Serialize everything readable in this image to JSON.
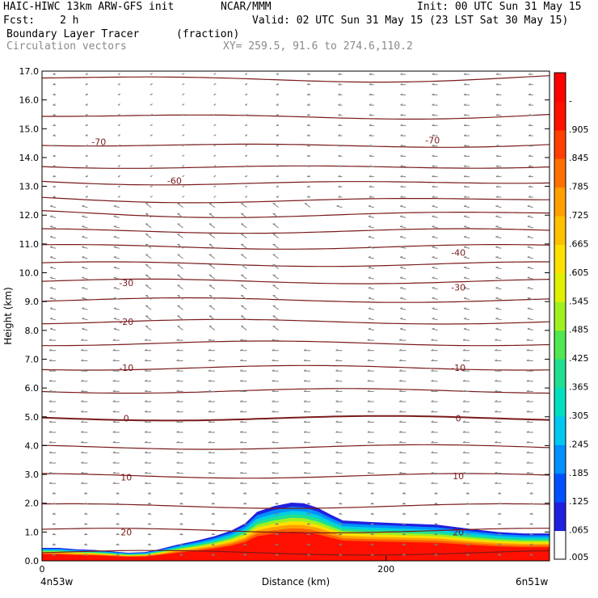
{
  "header": {
    "model": "HAIC-HIWC 13km ARW-GFS init",
    "org": "NCAR/MMM",
    "init": "Init: 00 UTC Sun 31 May 15",
    "fcst_label": "Fcst:",
    "fcst_value": "2 h",
    "valid": "Valid: 02 UTC Sun 31 May 15 (23 LST Sat 30 May 15)",
    "field": "Boundary Layer Tracer",
    "field_units": "(fraction)",
    "vectors": "Circulation vectors",
    "xy": "XY= 259.5, 91.6 to 274.6,110.2"
  },
  "colors": {
    "contour": "#7a1a1a",
    "vector": "#808080",
    "frame": "#000000"
  },
  "chart_data": {
    "type": "heatmap",
    "title": "Boundary Layer Tracer",
    "xlabel": "Distance (km)",
    "ylabel": "Height (km)",
    "xlim": [
      0,
      295
    ],
    "ylim": [
      0,
      17
    ],
    "x_ticks": [
      0,
      200
    ],
    "x_tick_labels": [
      "0",
      "200"
    ],
    "x_end_labels": [
      "4n53w",
      "6n51w"
    ],
    "y_ticks": [
      0,
      1,
      2,
      3,
      4,
      5,
      6,
      7,
      8,
      9,
      10,
      11,
      12,
      13,
      14,
      15,
      16,
      17
    ],
    "y_tick_labels": [
      "0.0",
      "1.0",
      "2.0",
      "3.0",
      "4.0",
      "5.0",
      "6.0",
      "7.0",
      "8.0",
      "9.0",
      "10.0",
      "11.0",
      "12.0",
      "13.0",
      "14.0",
      "15.0",
      "16.0",
      "17.0"
    ],
    "colorbar_labels": [
      ".005",
      ".065",
      ".125",
      ".185",
      ".245",
      ".305",
      ".365",
      ".425",
      ".485",
      ".545",
      ".605",
      ".665",
      ".725",
      ".785",
      ".845",
      ".905",
      "-"
    ],
    "colorbar_colors": [
      "#ffffff",
      "#2020e0",
      "#0050ff",
      "#0090ff",
      "#00c8f0",
      "#00e0c0",
      "#20e090",
      "#50e850",
      "#a0f020",
      "#e0f000",
      "#ffe000",
      "#ffc000",
      "#ffa000",
      "#ff7000",
      "#ff4000",
      "#ff1000",
      "#ff0000"
    ],
    "tracer_top_km": [
      [
        0,
        0.45
      ],
      [
        10,
        0.45
      ],
      [
        20,
        0.4
      ],
      [
        30,
        0.38
      ],
      [
        40,
        0.33
      ],
      [
        50,
        0.28
      ],
      [
        60,
        0.3
      ],
      [
        68,
        0.4
      ],
      [
        78,
        0.55
      ],
      [
        90,
        0.7
      ],
      [
        100,
        0.85
      ],
      [
        110,
        1.05
      ],
      [
        118,
        1.3
      ],
      [
        125,
        1.7
      ],
      [
        135,
        1.9
      ],
      [
        145,
        2.02
      ],
      [
        152,
        2.0
      ],
      [
        160,
        1.85
      ],
      [
        168,
        1.6
      ],
      [
        175,
        1.4
      ],
      [
        190,
        1.35
      ],
      [
        210,
        1.3
      ],
      [
        230,
        1.25
      ],
      [
        250,
        1.1
      ],
      [
        265,
        1.0
      ],
      [
        280,
        0.95
      ],
      [
        295,
        0.95
      ]
    ],
    "isotherm_labels": [
      {
        "text": "-70",
        "x": 33,
        "y": 14.55
      },
      {
        "text": "-70",
        "x": 227,
        "y": 14.6
      },
      {
        "text": "-60",
        "x": 77,
        "y": 13.2
      },
      {
        "text": "-40",
        "x": 242,
        "y": 10.7
      },
      {
        "text": "-30",
        "x": 49,
        "y": 9.65
      },
      {
        "text": "-30",
        "x": 242,
        "y": 9.5
      },
      {
        "text": "-20",
        "x": 49,
        "y": 8.3
      },
      {
        "text": "-10",
        "x": 49,
        "y": 6.7
      },
      {
        "text": "-10",
        "x": 242,
        "y": 6.7
      },
      {
        "text": "0",
        "x": 49,
        "y": 4.95
      },
      {
        "text": "0",
        "x": 242,
        "y": 4.95
      },
      {
        "text": "10",
        "x": 49,
        "y": 2.9
      },
      {
        "text": "10",
        "x": 242,
        "y": 2.95
      },
      {
        "text": "20",
        "x": 49,
        "y": 1.0
      },
      {
        "text": "20",
        "x": 242,
        "y": 1.0
      }
    ]
  }
}
